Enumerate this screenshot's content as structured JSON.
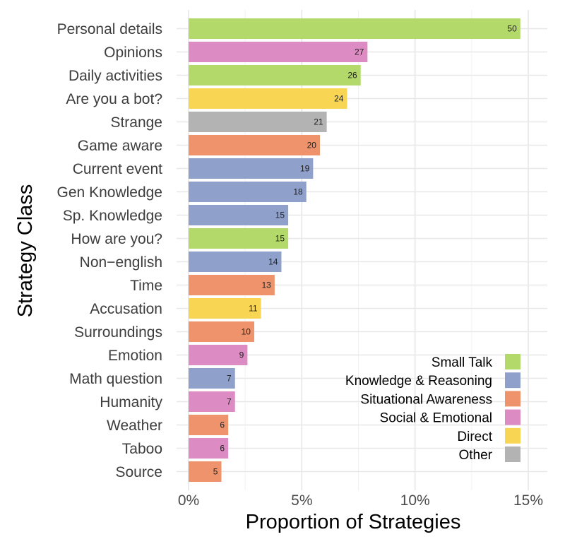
{
  "chart_data": {
    "type": "bar",
    "orientation": "horizontal",
    "xlabel": "Proportion of Strategies",
    "ylabel": "Strategy Class",
    "xlim": [
      0,
      15
    ],
    "x_ticks": [
      {
        "value": 0,
        "label": "0%"
      },
      {
        "value": 5,
        "label": "5%"
      },
      {
        "value": 10,
        "label": "10%"
      },
      {
        "value": 15,
        "label": "15%"
      }
    ],
    "grid": true,
    "legend_position": "bottom-right",
    "legend": [
      {
        "name": "Small Talk",
        "color": "#b2d969"
      },
      {
        "name": "Knowledge & Reasoning",
        "color": "#8fa0cb"
      },
      {
        "name": "Situational Awareness",
        "color": "#ee936b"
      },
      {
        "name": "Social & Emotional",
        "color": "#dc8cc3"
      },
      {
        "name": "Direct",
        "color": "#f8d653"
      },
      {
        "name": "Other",
        "color": "#b3b3b3"
      }
    ],
    "bars": [
      {
        "category": "Personal details",
        "value": 14.65,
        "count": "50",
        "group": "Small Talk"
      },
      {
        "category": "Opinions",
        "value": 7.9,
        "count": "27",
        "group": "Social & Emotional"
      },
      {
        "category": "Daily activities",
        "value": 7.6,
        "count": "26",
        "group": "Small Talk"
      },
      {
        "category": "Are you a bot?",
        "value": 7.0,
        "count": "24",
        "group": "Direct"
      },
      {
        "category": "Strange",
        "value": 6.1,
        "count": "21",
        "group": "Other"
      },
      {
        "category": "Game aware",
        "value": 5.8,
        "count": "20",
        "group": "Situational Awareness"
      },
      {
        "category": "Current event",
        "value": 5.5,
        "count": "19",
        "group": "Knowledge & Reasoning"
      },
      {
        "category": "Gen Knowledge",
        "value": 5.2,
        "count": "18",
        "group": "Knowledge & Reasoning"
      },
      {
        "category": "Sp. Knowledge",
        "value": 4.4,
        "count": "15",
        "group": "Knowledge & Reasoning"
      },
      {
        "category": "How are you?",
        "value": 4.4,
        "count": "15",
        "group": "Small Talk"
      },
      {
        "category": "Non−english",
        "value": 4.1,
        "count": "14",
        "group": "Knowledge & Reasoning"
      },
      {
        "category": "Time",
        "value": 3.8,
        "count": "13",
        "group": "Situational Awareness"
      },
      {
        "category": "Accusation",
        "value": 3.2,
        "count": "11",
        "group": "Direct"
      },
      {
        "category": "Surroundings",
        "value": 2.9,
        "count": "10",
        "group": "Situational Awareness"
      },
      {
        "category": "Emotion",
        "value": 2.6,
        "count": "9",
        "group": "Social & Emotional"
      },
      {
        "category": "Math question",
        "value": 2.05,
        "count": "7",
        "group": "Knowledge & Reasoning"
      },
      {
        "category": "Humanity",
        "value": 2.05,
        "count": "7",
        "group": "Social & Emotional"
      },
      {
        "category": "Weather",
        "value": 1.75,
        "count": "6",
        "group": "Situational Awareness"
      },
      {
        "category": "Taboo",
        "value": 1.75,
        "count": "6",
        "group": "Social & Emotional"
      },
      {
        "category": "Source",
        "value": 1.45,
        "count": "5",
        "group": "Situational Awareness"
      }
    ]
  }
}
